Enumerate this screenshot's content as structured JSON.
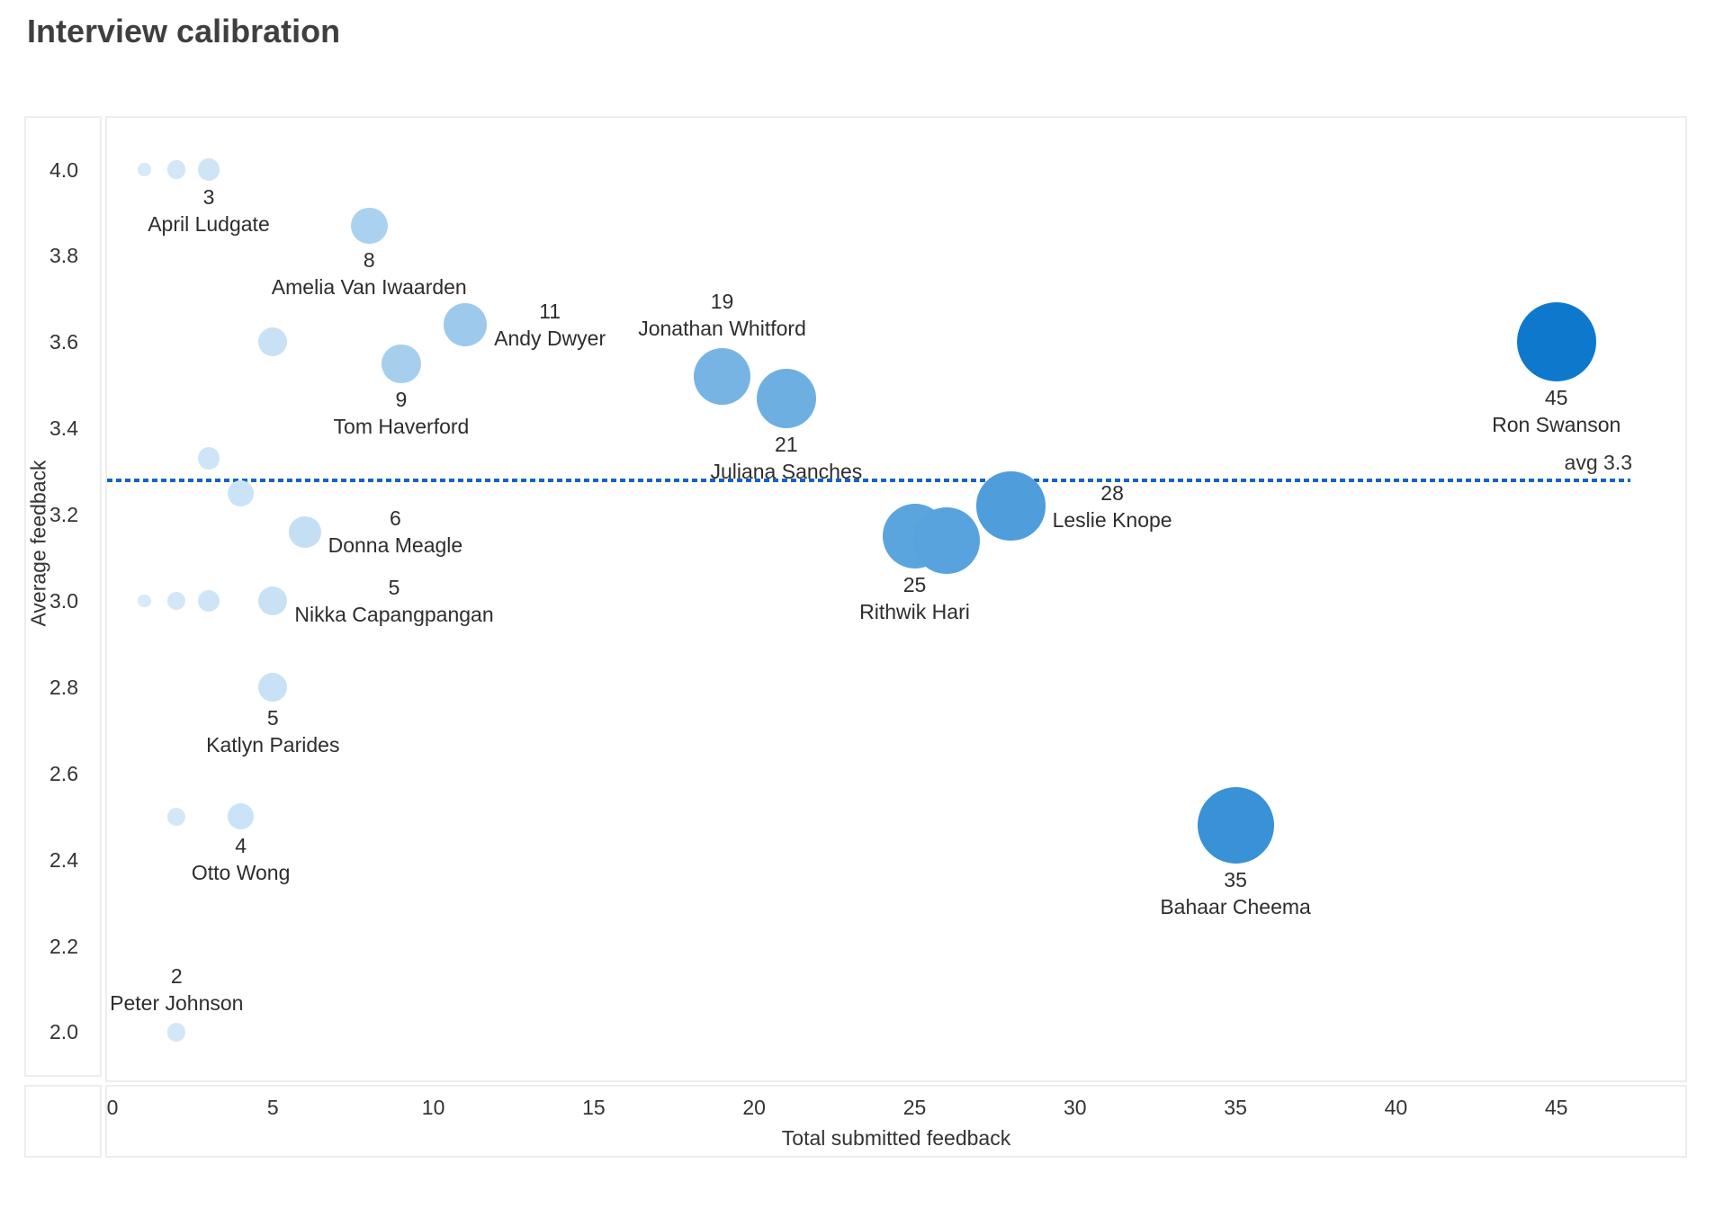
{
  "page_title": "Interview calibration",
  "chart_data": {
    "type": "scatter",
    "title": "Interview calibration",
    "xlabel": "Total submitted feedback",
    "ylabel": "Average feedback",
    "xlim": [
      0,
      49
    ],
    "ylim": [
      1.88,
      4.12
    ],
    "x_ticks": [
      "0",
      "5",
      "10",
      "15",
      "20",
      "25",
      "30",
      "35",
      "40",
      "45"
    ],
    "y_ticks": [
      "4.0",
      "3.8",
      "3.6",
      "3.4",
      "3.2",
      "3.0",
      "2.8",
      "2.6",
      "2.4",
      "2.2",
      "2.0"
    ],
    "grid": false,
    "legend": false,
    "reference_line": {
      "value": 3.28,
      "label": "avg 3.3",
      "color": "#1263c9",
      "style": "dotted"
    },
    "size_note": "bubble area proportional to count",
    "points": [
      {
        "x": 1,
        "y": 4.0,
        "count": 1,
        "name": "",
        "label_pos": "none",
        "color": "#d8eaf8"
      },
      {
        "x": 2,
        "y": 4.0,
        "count": 2,
        "name": "",
        "label_pos": "none",
        "color": "#d2e7f7"
      },
      {
        "x": 3,
        "y": 4.0,
        "count": 3,
        "name": "April Ludgate",
        "label_pos": "below",
        "color": "#cfe5f7"
      },
      {
        "x": 8,
        "y": 3.87,
        "count": 8,
        "name": "Amelia Van Iwaarden",
        "label_pos": "below",
        "color": "#aad1ef"
      },
      {
        "x": 5,
        "y": 3.6,
        "count": 5,
        "name": "",
        "label_pos": "none",
        "color": "#c8e1f5"
      },
      {
        "x": 11,
        "y": 3.64,
        "count": 11,
        "name": "Andy Dwyer",
        "label_pos": "right",
        "color": "#9dcaec"
      },
      {
        "x": 9,
        "y": 3.55,
        "count": 9,
        "name": "Tom Haverford",
        "label_pos": "below",
        "color": "#a6cfee"
      },
      {
        "x": 3,
        "y": 3.33,
        "count": 3,
        "name": "",
        "label_pos": "none",
        "color": "#cfe5f7"
      },
      {
        "x": 4,
        "y": 3.25,
        "count": 4,
        "name": "",
        "label_pos": "none",
        "color": "#cbe3f6"
      },
      {
        "x": 6,
        "y": 3.16,
        "count": 6,
        "name": "Donna Meagle",
        "label_pos": "right",
        "color": "#c4dff4"
      },
      {
        "x": 1,
        "y": 3.0,
        "count": 1,
        "name": "",
        "label_pos": "none",
        "color": "#d8eaf8"
      },
      {
        "x": 2,
        "y": 3.0,
        "count": 2,
        "name": "",
        "label_pos": "none",
        "color": "#d2e7f7"
      },
      {
        "x": 3,
        "y": 3.0,
        "count": 3,
        "name": "",
        "label_pos": "none",
        "color": "#cfe5f7"
      },
      {
        "x": 5,
        "y": 3.0,
        "count": 5,
        "name": "Nikka Capangpangan",
        "label_pos": "right",
        "color": "#c8e1f5"
      },
      {
        "x": 5,
        "y": 2.8,
        "count": 5,
        "name": "Katlyn Parides",
        "label_pos": "below",
        "color": "#c8e1f5"
      },
      {
        "x": 2,
        "y": 2.5,
        "count": 2,
        "name": "",
        "label_pos": "none",
        "color": "#d2e7f7"
      },
      {
        "x": 4,
        "y": 2.5,
        "count": 4,
        "name": "Otto Wong",
        "label_pos": "below",
        "color": "#cbe3f6"
      },
      {
        "x": 2,
        "y": 2.0,
        "count": 2,
        "name": "Peter Johnson",
        "label_pos": "above",
        "color": "#d2e7f7"
      },
      {
        "x": 19,
        "y": 3.52,
        "count": 19,
        "name": "Jonathan Whitford",
        "label_pos": "above",
        "color": "#78b4e3"
      },
      {
        "x": 21,
        "y": 3.47,
        "count": 21,
        "name": "Juliana Sanches",
        "label_pos": "below",
        "color": "#6eafe1"
      },
      {
        "x": 25,
        "y": 3.15,
        "count": 25,
        "name": "Rithwik Hari",
        "label_pos": "below",
        "color": "#5ba5dd"
      },
      {
        "x": 26,
        "y": 3.14,
        "count": 26,
        "name": "",
        "label_pos": "none",
        "color": "#58a3dd"
      },
      {
        "x": 28,
        "y": 3.22,
        "count": 28,
        "name": "Leslie Knope",
        "label_pos": "right",
        "color": "#4f9dda"
      },
      {
        "x": 35,
        "y": 2.48,
        "count": 35,
        "name": "Bahaar Cheema",
        "label_pos": "below",
        "color": "#3991d6"
      },
      {
        "x": 45,
        "y": 3.6,
        "count": 45,
        "name": "Ron Swanson",
        "label_pos": "below",
        "color": "#0e79cc"
      }
    ]
  }
}
